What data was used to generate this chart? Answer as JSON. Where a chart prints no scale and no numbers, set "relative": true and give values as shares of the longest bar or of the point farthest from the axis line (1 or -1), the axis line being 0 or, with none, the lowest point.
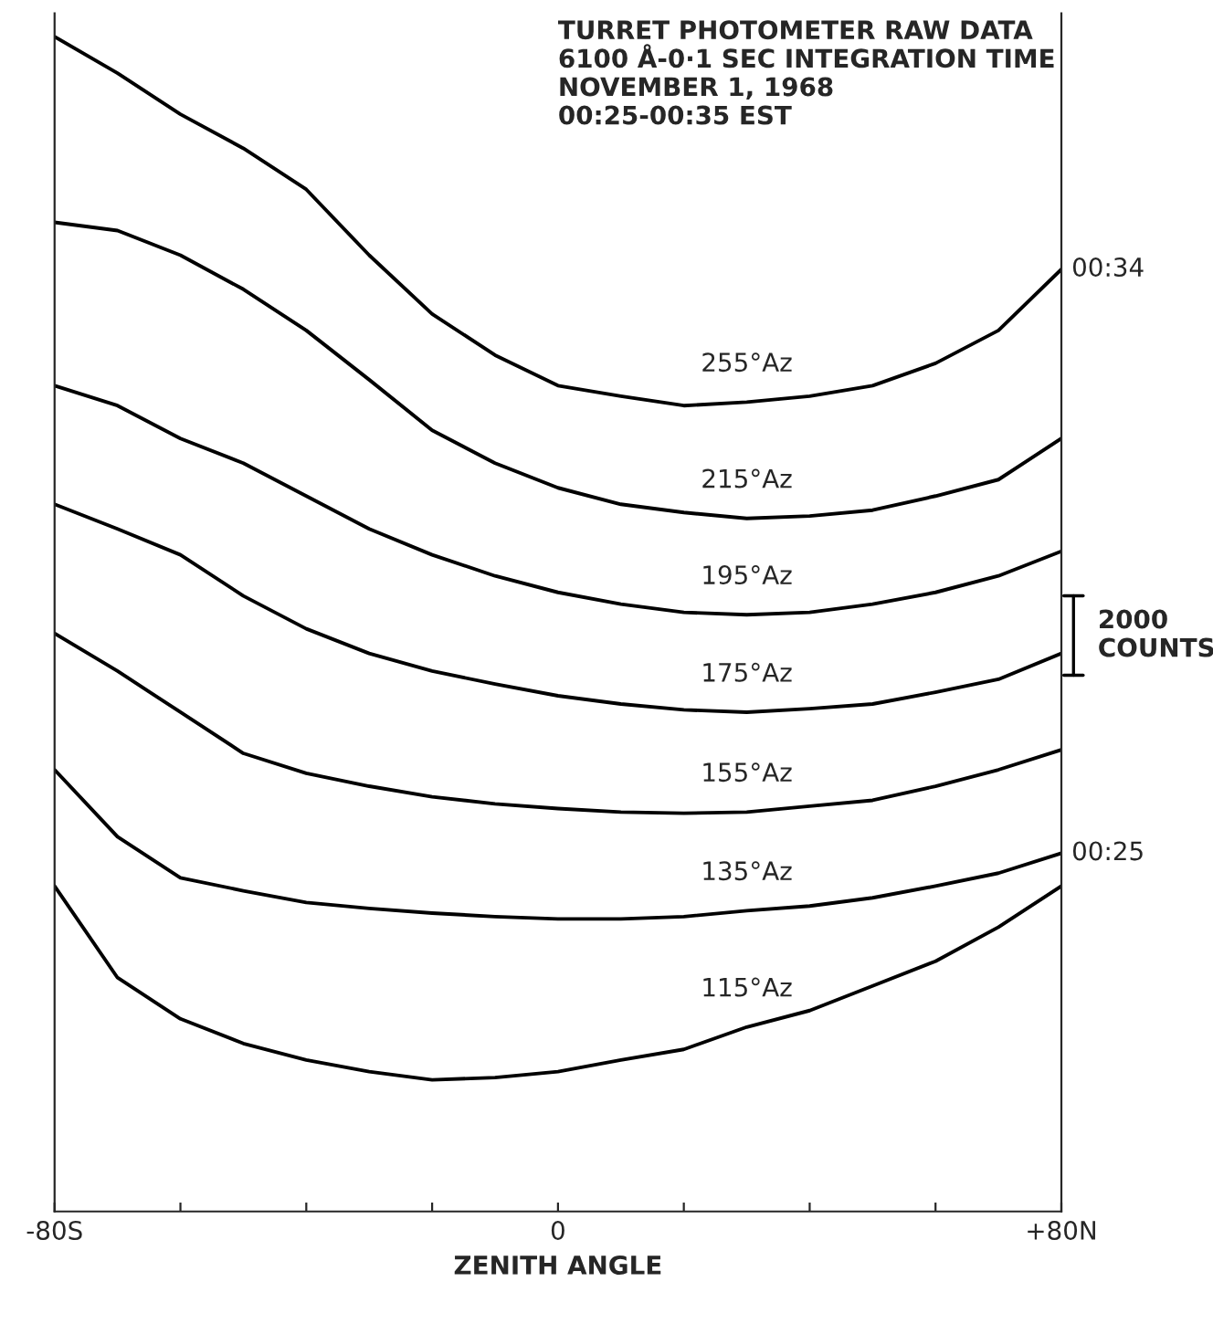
{
  "chart_data": {
    "type": "line",
    "title": "TURRET PHOTOMETER RAW DATA\n6100 Å-0·1 SEC INTEGRATION TIME\nNOVEMBER 1, 1968\n00:25-00:35 EST",
    "xlabel": "ZENITH ANGLE",
    "relative": true,
    "xlim": [
      -80,
      80
    ],
    "xticks": [
      {
        "value": -80,
        "label": "-80S"
      },
      {
        "value": -60,
        "label": null
      },
      {
        "value": -40,
        "label": null
      },
      {
        "value": -20,
        "label": null
      },
      {
        "value": 0,
        "label": "0"
      },
      {
        "value": 20,
        "label": null
      },
      {
        "value": 40,
        "label": null
      },
      {
        "value": 60,
        "label": null
      },
      {
        "value": 80,
        "label": "+80N"
      }
    ],
    "x": [
      -80,
      -70,
      -60,
      -50,
      -40,
      -30,
      -20,
      -10,
      0,
      10,
      20,
      30,
      40,
      50,
      60,
      70,
      80
    ],
    "series": [
      {
        "name": "255°Az",
        "color": "#000000",
        "values": [
          1.0,
          0.969,
          0.934,
          0.905,
          0.87,
          0.814,
          0.764,
          0.729,
          0.703,
          0.694,
          0.686,
          0.689,
          0.694,
          0.703,
          0.722,
          0.75,
          0.802
        ]
      },
      {
        "name": "215°Az",
        "color": "#000000",
        "values": [
          0.842,
          0.835,
          0.814,
          0.785,
          0.75,
          0.708,
          0.665,
          0.637,
          0.616,
          0.602,
          0.595,
          0.59,
          0.592,
          0.597,
          0.609,
          0.623,
          0.658
        ]
      },
      {
        "name": "195°Az",
        "color": "#000000",
        "values": [
          0.703,
          0.686,
          0.658,
          0.637,
          0.609,
          0.581,
          0.559,
          0.541,
          0.527,
          0.517,
          0.51,
          0.508,
          0.51,
          0.517,
          0.527,
          0.541,
          0.562
        ]
      },
      {
        "name": "175°Az",
        "color": "#000000",
        "values": [
          0.602,
          0.581,
          0.559,
          0.524,
          0.496,
          0.475,
          0.46,
          0.449,
          0.439,
          0.432,
          0.427,
          0.425,
          0.428,
          0.432,
          0.442,
          0.453,
          0.475
        ]
      },
      {
        "name": "155°Az",
        "color": "#000000",
        "values": [
          0.492,
          0.46,
          0.425,
          0.39,
          0.373,
          0.362,
          0.353,
          0.347,
          0.343,
          0.34,
          0.339,
          0.34,
          0.345,
          0.35,
          0.362,
          0.376,
          0.393
        ]
      },
      {
        "name": "135°Az",
        "color": "#000000",
        "values": [
          0.376,
          0.319,
          0.284,
          0.273,
          0.263,
          0.258,
          0.254,
          0.251,
          0.249,
          0.249,
          0.251,
          0.256,
          0.26,
          0.267,
          0.277,
          0.288,
          0.305
        ]
      },
      {
        "name": "115°Az",
        "color": "#000000",
        "values": [
          0.277,
          0.199,
          0.164,
          0.143,
          0.129,
          0.119,
          0.112,
          0.114,
          0.119,
          0.129,
          0.138,
          0.157,
          0.171,
          0.192,
          0.213,
          0.242,
          0.277
        ]
      }
    ],
    "annotations": [
      {
        "text": "00:34",
        "x": 80,
        "y": 0.802
      },
      {
        "text": "00:25",
        "x": 80,
        "y": 0.305
      },
      "2000\nCOUNTS"
    ],
    "grid": false,
    "legend": false,
    "marker": "none",
    "line_style": "solid"
  }
}
